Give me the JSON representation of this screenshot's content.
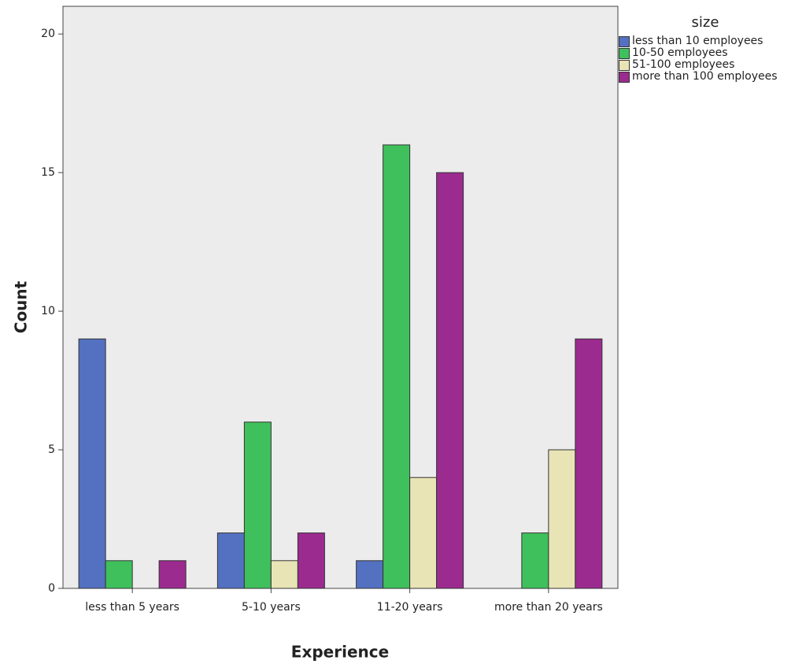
{
  "chart_data": {
    "type": "bar",
    "x_label": "Experience",
    "y_label": "Count",
    "categories": [
      "less than 5 years",
      "5-10 years",
      "11-20 years",
      "more than 20 years"
    ],
    "legend_title": "size",
    "series": [
      {
        "name": "less than 10 employees",
        "color": "#5470c1",
        "values": [
          9,
          2,
          1,
          0
        ]
      },
      {
        "name": "10-50 employees",
        "color": "#3fc05c",
        "values": [
          1,
          6,
          16,
          2
        ]
      },
      {
        "name": "51-100 employees",
        "color": "#e8e4b6",
        "values": [
          0,
          1,
          4,
          5
        ]
      },
      {
        "name": "more than 100 employees",
        "color": "#9b2b8f",
        "values": [
          1,
          2,
          15,
          9
        ]
      }
    ],
    "ylim": [
      0,
      21
    ],
    "yticks": [
      0,
      5,
      10,
      15,
      20
    ],
    "legend_position": "right"
  }
}
